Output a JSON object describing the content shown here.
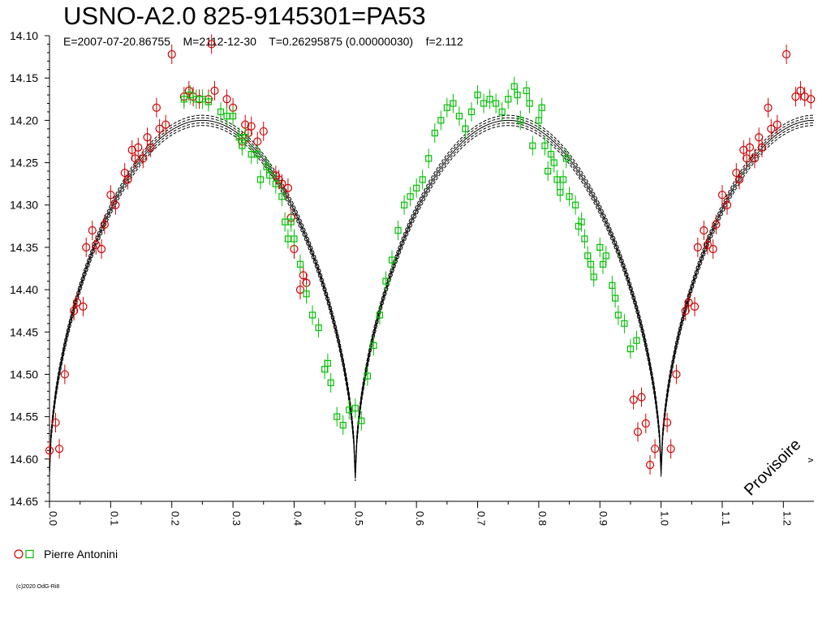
{
  "title": "USNO-A2.0 825-9145301=PA53",
  "subtitle": "E=2007-07-20.86755    M=2112-12-30    T=0.26295875 (0.00000030)    f=2.112",
  "watermark": "Provisoire",
  "corner_label": "v",
  "copyright": "(c)2020 OdG-Ri8",
  "colors": {
    "observer_red": "#d00000",
    "observer_green": "#00c000",
    "model": "#000000"
  },
  "chart_data": {
    "type": "scatter",
    "title": "USNO-A2.0 825-9145301=PA53",
    "xlabel": "",
    "ylabel": "",
    "xlim": [
      0.0,
      1.25
    ],
    "ylim": [
      14.65,
      14.1
    ],
    "grid": false,
    "y_ticks": [
      "14.10",
      "14.15",
      "14.20",
      "14.25",
      "14.30",
      "14.35",
      "14.40",
      "14.45",
      "14.50",
      "14.55",
      "14.60",
      "14.65"
    ],
    "x_ticks": [
      "0.0",
      "0.1",
      "0.2",
      "0.3",
      "0.4",
      "0.5",
      "0.6",
      "0.7",
      "0.8",
      "0.9",
      "1.0",
      "1.1",
      "1.2"
    ],
    "legend": [
      {
        "name": "Pierre Antonini",
        "markers": [
          "circle-red",
          "square-green"
        ]
      }
    ],
    "model": {
      "max_mag": 14.2,
      "primary_min_phase": 0.0,
      "primary_min_mag": 14.615,
      "secondary_min_phase": 0.5,
      "secondary_min_mag": 14.62
    },
    "series": [
      {
        "marker": "circle",
        "color": "#d00000",
        "points": [
          [
            0.0,
            14.59
          ],
          [
            0.01,
            14.557
          ],
          [
            0.016,
            14.588
          ],
          [
            0.025,
            14.5
          ],
          [
            0.04,
            14.425
          ],
          [
            0.045,
            14.415
          ],
          [
            0.055,
            14.42
          ],
          [
            0.06,
            14.35
          ],
          [
            0.07,
            14.33
          ],
          [
            0.076,
            14.347
          ],
          [
            0.085,
            14.352
          ],
          [
            0.09,
            14.323
          ],
          [
            0.1,
            14.288
          ],
          [
            0.108,
            14.3
          ],
          [
            0.123,
            14.262
          ],
          [
            0.128,
            14.27
          ],
          [
            0.135,
            14.235
          ],
          [
            0.14,
            14.245
          ],
          [
            0.145,
            14.232
          ],
          [
            0.153,
            14.245
          ],
          [
            0.16,
            14.22
          ],
          [
            0.165,
            14.232
          ],
          [
            0.175,
            14.185
          ],
          [
            0.18,
            14.21
          ],
          [
            0.19,
            14.205
          ],
          [
            0.2,
            14.122
          ],
          [
            0.22,
            14.172
          ],
          [
            0.228,
            14.165
          ],
          [
            0.235,
            14.172
          ],
          [
            0.245,
            14.175
          ],
          [
            0.26,
            14.175
          ],
          [
            0.265,
            14.11
          ],
          [
            0.27,
            14.165
          ],
          [
            0.29,
            14.175
          ],
          [
            0.3,
            14.185
          ],
          [
            0.315,
            14.225
          ],
          [
            0.32,
            14.205
          ],
          [
            0.325,
            14.215
          ],
          [
            0.33,
            14.207
          ],
          [
            0.34,
            14.225
          ],
          [
            0.35,
            14.213
          ],
          [
            0.37,
            14.265
          ],
          [
            0.375,
            14.27
          ],
          [
            0.38,
            14.275
          ],
          [
            0.39,
            14.28
          ],
          [
            0.395,
            14.315
          ],
          [
            0.4,
            14.352
          ],
          [
            0.41,
            14.4
          ],
          [
            0.415,
            14.383
          ],
          [
            0.42,
            14.392
          ],
          [
            0.955,
            14.53
          ],
          [
            0.962,
            14.568
          ],
          [
            0.968,
            14.527
          ],
          [
            0.975,
            14.558
          ],
          [
            0.982,
            14.607
          ],
          [
            0.99,
            14.588
          ],
          [
            1.01,
            14.557
          ],
          [
            1.016,
            14.588
          ],
          [
            1.025,
            14.5
          ],
          [
            1.04,
            14.425
          ],
          [
            1.045,
            14.415
          ],
          [
            1.055,
            14.42
          ],
          [
            1.06,
            14.35
          ],
          [
            1.07,
            14.33
          ],
          [
            1.076,
            14.347
          ],
          [
            1.085,
            14.352
          ],
          [
            1.09,
            14.323
          ],
          [
            1.1,
            14.288
          ],
          [
            1.108,
            14.3
          ],
          [
            1.123,
            14.262
          ],
          [
            1.128,
            14.27
          ],
          [
            1.135,
            14.235
          ],
          [
            1.14,
            14.245
          ],
          [
            1.145,
            14.232
          ],
          [
            1.153,
            14.245
          ],
          [
            1.16,
            14.22
          ],
          [
            1.165,
            14.232
          ],
          [
            1.175,
            14.185
          ],
          [
            1.18,
            14.21
          ],
          [
            1.19,
            14.205
          ],
          [
            1.205,
            14.122
          ],
          [
            1.22,
            14.172
          ],
          [
            1.228,
            14.165
          ],
          [
            1.235,
            14.172
          ],
          [
            1.245,
            14.175
          ]
        ]
      },
      {
        "marker": "square",
        "color": "#00c000",
        "points": [
          [
            0.22,
            14.175
          ],
          [
            0.23,
            14.17
          ],
          [
            0.24,
            14.175
          ],
          [
            0.25,
            14.175
          ],
          [
            0.26,
            14.178
          ],
          [
            0.28,
            14.19
          ],
          [
            0.29,
            14.195
          ],
          [
            0.3,
            14.195
          ],
          [
            0.31,
            14.22
          ],
          [
            0.315,
            14.23
          ],
          [
            0.32,
            14.22
          ],
          [
            0.33,
            14.24
          ],
          [
            0.34,
            14.24
          ],
          [
            0.345,
            14.27
          ],
          [
            0.355,
            14.255
          ],
          [
            0.36,
            14.265
          ],
          [
            0.37,
            14.275
          ],
          [
            0.38,
            14.29
          ],
          [
            0.385,
            14.32
          ],
          [
            0.39,
            14.34
          ],
          [
            0.395,
            14.32
          ],
          [
            0.4,
            14.34
          ],
          [
            0.41,
            14.37
          ],
          [
            0.42,
            14.405
          ],
          [
            0.43,
            14.43
          ],
          [
            0.44,
            14.445
          ],
          [
            0.45,
            14.494
          ],
          [
            0.455,
            14.487
          ],
          [
            0.46,
            14.51
          ],
          [
            0.47,
            14.55
          ],
          [
            0.48,
            14.56
          ],
          [
            0.49,
            14.542
          ],
          [
            0.5,
            14.54
          ],
          [
            0.51,
            14.555
          ],
          [
            0.52,
            14.502
          ],
          [
            0.53,
            14.466
          ],
          [
            0.54,
            14.43
          ],
          [
            0.55,
            14.39
          ],
          [
            0.56,
            14.365
          ],
          [
            0.57,
            14.33
          ],
          [
            0.58,
            14.3
          ],
          [
            0.59,
            14.29
          ],
          [
            0.6,
            14.28
          ],
          [
            0.61,
            14.27
          ],
          [
            0.62,
            14.245
          ],
          [
            0.63,
            14.215
          ],
          [
            0.64,
            14.2
          ],
          [
            0.65,
            14.185
          ],
          [
            0.66,
            14.18
          ],
          [
            0.67,
            14.195
          ],
          [
            0.68,
            14.21
          ],
          [
            0.69,
            14.19
          ],
          [
            0.7,
            14.17
          ],
          [
            0.71,
            14.18
          ],
          [
            0.72,
            14.175
          ],
          [
            0.73,
            14.18
          ],
          [
            0.74,
            14.19
          ],
          [
            0.75,
            14.175
          ],
          [
            0.76,
            14.16
          ],
          [
            0.765,
            14.17
          ],
          [
            0.77,
            14.2
          ],
          [
            0.78,
            14.165
          ],
          [
            0.785,
            14.18
          ],
          [
            0.79,
            14.23
          ],
          [
            0.8,
            14.2
          ],
          [
            0.805,
            14.185
          ],
          [
            0.81,
            14.23
          ],
          [
            0.815,
            14.26
          ],
          [
            0.82,
            14.24
          ],
          [
            0.825,
            14.25
          ],
          [
            0.83,
            14.27
          ],
          [
            0.835,
            14.285
          ],
          [
            0.84,
            14.27
          ],
          [
            0.845,
            14.245
          ],
          [
            0.85,
            14.29
          ],
          [
            0.86,
            14.3
          ],
          [
            0.865,
            14.325
          ],
          [
            0.87,
            14.32
          ],
          [
            0.875,
            14.34
          ],
          [
            0.88,
            14.36
          ],
          [
            0.885,
            14.37
          ],
          [
            0.89,
            14.385
          ],
          [
            0.9,
            14.35
          ],
          [
            0.905,
            14.37
          ],
          [
            0.91,
            14.36
          ],
          [
            0.92,
            14.395
          ],
          [
            0.925,
            14.41
          ],
          [
            0.93,
            14.43
          ],
          [
            0.94,
            14.44
          ],
          [
            0.95,
            14.47
          ],
          [
            0.96,
            14.46
          ]
        ]
      }
    ]
  }
}
